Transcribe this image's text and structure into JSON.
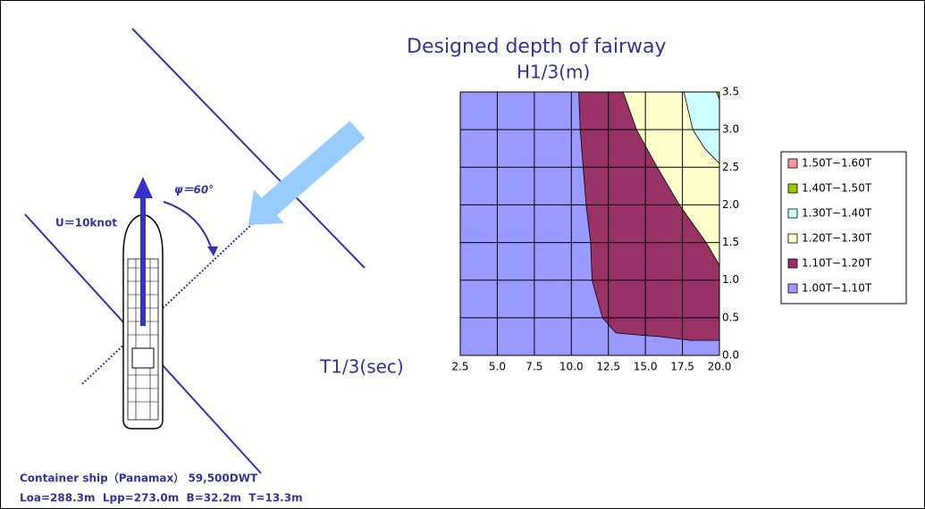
{
  "chart_data": {
    "type": "contour",
    "title": "Designed depth of fairway",
    "x_label": "T1/3(sec)",
    "y_label": "H1/3(m)",
    "xlim": [
      2.5,
      20.0
    ],
    "ylim": [
      0.0,
      3.5
    ],
    "xticks": [
      2.5,
      {
        "value": 5,
        "label": "5.0"
      },
      7.5,
      {
        "value": 10,
        "label": "10.0"
      },
      12.5,
      {
        "value": 15,
        "label": "15.0"
      },
      17.5,
      {
        "value": 20,
        "label": "20.0"
      }
    ],
    "yticks": [
      {
        "value": 0,
        "label": "0.0"
      },
      0.5,
      {
        "value": 1,
        "label": "1.0"
      },
      1.5,
      {
        "value": 2,
        "label": "2.0"
      },
      2.5,
      {
        "value": 3,
        "label": "3.0"
      },
      3.5
    ],
    "grid": true,
    "legend_position": "right",
    "series": [
      {
        "name": "1.50T−1.60T",
        "color": "#ff9999"
      },
      {
        "name": "1.40T−1.50T",
        "color": "#99cc00",
        "x": [
          19.8,
          20,
          20
        ],
        "values": [
          3.5,
          3.5,
          3.4
        ]
      },
      {
        "name": "1.30T−1.40T",
        "color": "#ccffff",
        "x": [
          17.6,
          18.2,
          19.0,
          20,
          20
        ],
        "values": [
          3.5,
          3.0,
          2.75,
          2.55,
          3.5
        ]
      },
      {
        "name": "1.20T−1.30T",
        "color": "#ffffcc",
        "x": [
          13.5,
          14.4,
          15.8,
          17.3,
          19.1,
          20,
          20
        ],
        "values": [
          3.5,
          3.0,
          2.5,
          2.0,
          1.5,
          1.2,
          3.5
        ]
      },
      {
        "name": "1.10T−1.20T",
        "color": "#993366",
        "x": [
          10.5,
          10.6,
          10.8,
          11.0,
          11.3,
          11.4,
          12.1,
          13.0,
          14.0,
          16.0,
          18.0,
          20,
          20
        ],
        "values": [
          3.5,
          3.0,
          2.5,
          2.0,
          1.5,
          1.0,
          0.5,
          0.3,
          0.28,
          0.25,
          0.2,
          0.2,
          3.5
        ]
      },
      {
        "name": "1.00T−1.10T",
        "color": "#9999ff",
        "x": [
          2.5,
          20,
          20,
          2.5
        ],
        "values": [
          0,
          0,
          3.5,
          3.5
        ]
      }
    ],
    "annotations": [
      "U＝10knot",
      "ψ＝60°",
      "Container ship（Panamax） 59,500DWT",
      "Loa=288.3m  Lpp=273.0m  B=32.2m  T=13.3m"
    ]
  }
}
